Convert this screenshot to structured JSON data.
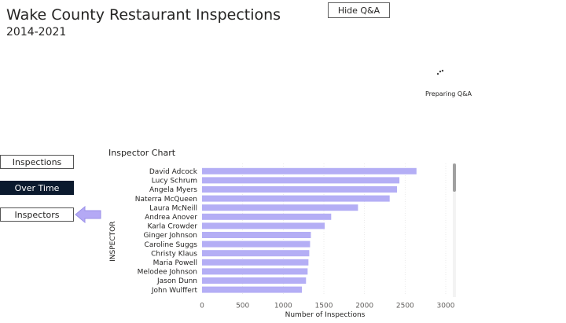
{
  "header": {
    "title": "Wake County Restaurant Inspections",
    "subtitle": "2014-2021"
  },
  "qa": {
    "hide_label": "Hide Q&A",
    "status": "Preparing Q&A"
  },
  "nav": {
    "inspections": "Inspections",
    "over_time": "Over Time",
    "inspectors": "Inspectors",
    "active_color": "#0b1a2e",
    "arrow_color": "#b4a9f5"
  },
  "chart_section": {
    "title": "Inspector Chart"
  },
  "chart_data": {
    "type": "bar",
    "orientation": "horizontal",
    "title": "Inspector Chart",
    "xlabel": "Number of Inspections",
    "ylabel": "INSPECTOR",
    "xlim": [
      0,
      3000
    ],
    "x_ticks": [
      0,
      500,
      1000,
      1500,
      2000,
      2500,
      3000
    ],
    "grid": true,
    "bar_color": "#b4aef5",
    "categories": [
      "David Adcock",
      "Lucy Schrum",
      "Angela Myers",
      "Naterra McQueen",
      "Laura McNeill",
      "Andrea Anover",
      "Karla Crowder",
      "Ginger Johnson",
      "Caroline Suggs",
      "Christy Klaus",
      "Maria Powell",
      "Melodee Johnson",
      "Jason Dunn",
      "John Wulffert"
    ],
    "values": [
      2640,
      2430,
      2400,
      2310,
      1920,
      1590,
      1510,
      1340,
      1330,
      1320,
      1310,
      1300,
      1280,
      1230
    ]
  }
}
